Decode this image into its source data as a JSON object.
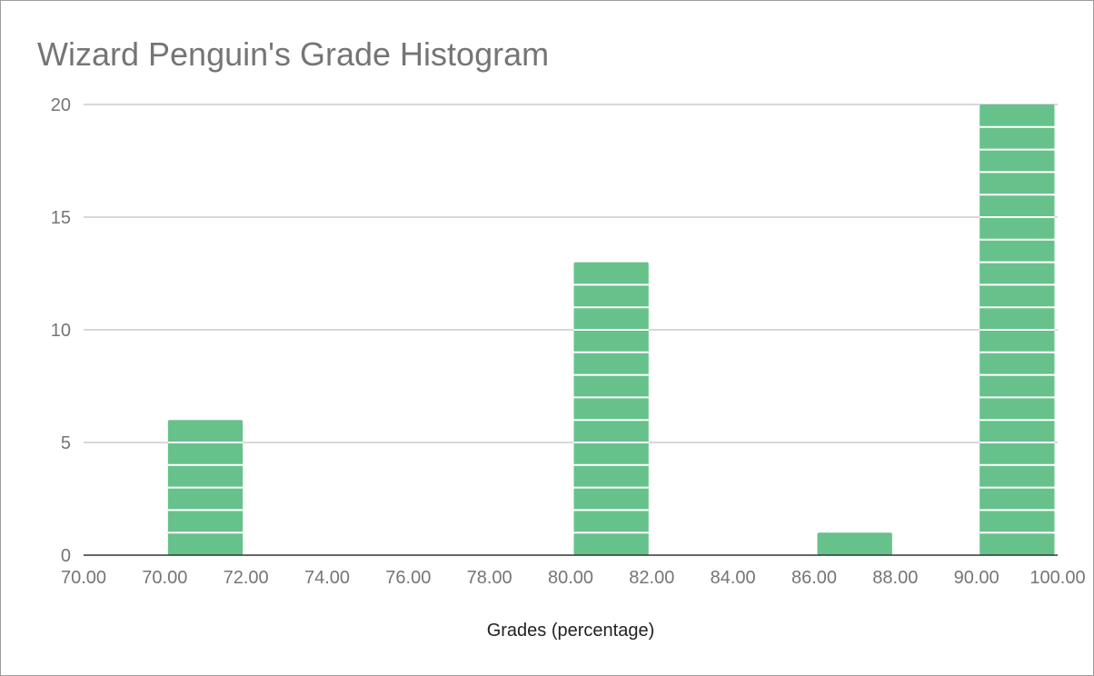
{
  "chart_data": {
    "type": "bar",
    "title": "Wizard Penguin's Grade Histogram",
    "xlabel": "Grades (percentage)",
    "ylabel": "",
    "bin_edge_labels": [
      "70.00",
      "70.00",
      "72.00",
      "74.00",
      "76.00",
      "78.00",
      "80.00",
      "82.00",
      "84.00",
      "86.00",
      "88.00",
      "90.00",
      "100.00"
    ],
    "bins": [
      {
        "from": "70.00",
        "to": "70.00",
        "value": 0
      },
      {
        "from": "70.00",
        "to": "72.00",
        "value": 6
      },
      {
        "from": "72.00",
        "to": "74.00",
        "value": 0
      },
      {
        "from": "74.00",
        "to": "76.00",
        "value": 0
      },
      {
        "from": "76.00",
        "to": "78.00",
        "value": 0
      },
      {
        "from": "78.00",
        "to": "80.00",
        "value": 0
      },
      {
        "from": "80.00",
        "to": "82.00",
        "value": 13
      },
      {
        "from": "82.00",
        "to": "84.00",
        "value": 0
      },
      {
        "from": "84.00",
        "to": "86.00",
        "value": 0
      },
      {
        "from": "86.00",
        "to": "88.00",
        "value": 1
      },
      {
        "from": "88.00",
        "to": "90.00",
        "value": 0
      },
      {
        "from": "90.00",
        "to": "100.00",
        "value": 20
      }
    ],
    "ylim": [
      0,
      20
    ],
    "yticks": [
      0,
      5,
      10,
      15,
      20
    ],
    "grid": true,
    "legend": "none",
    "bar_color": "#67c18b",
    "bar_segment_line_color": "#ffffff",
    "gridline_color": "#cccccc",
    "axis_line_color": "#333333"
  }
}
